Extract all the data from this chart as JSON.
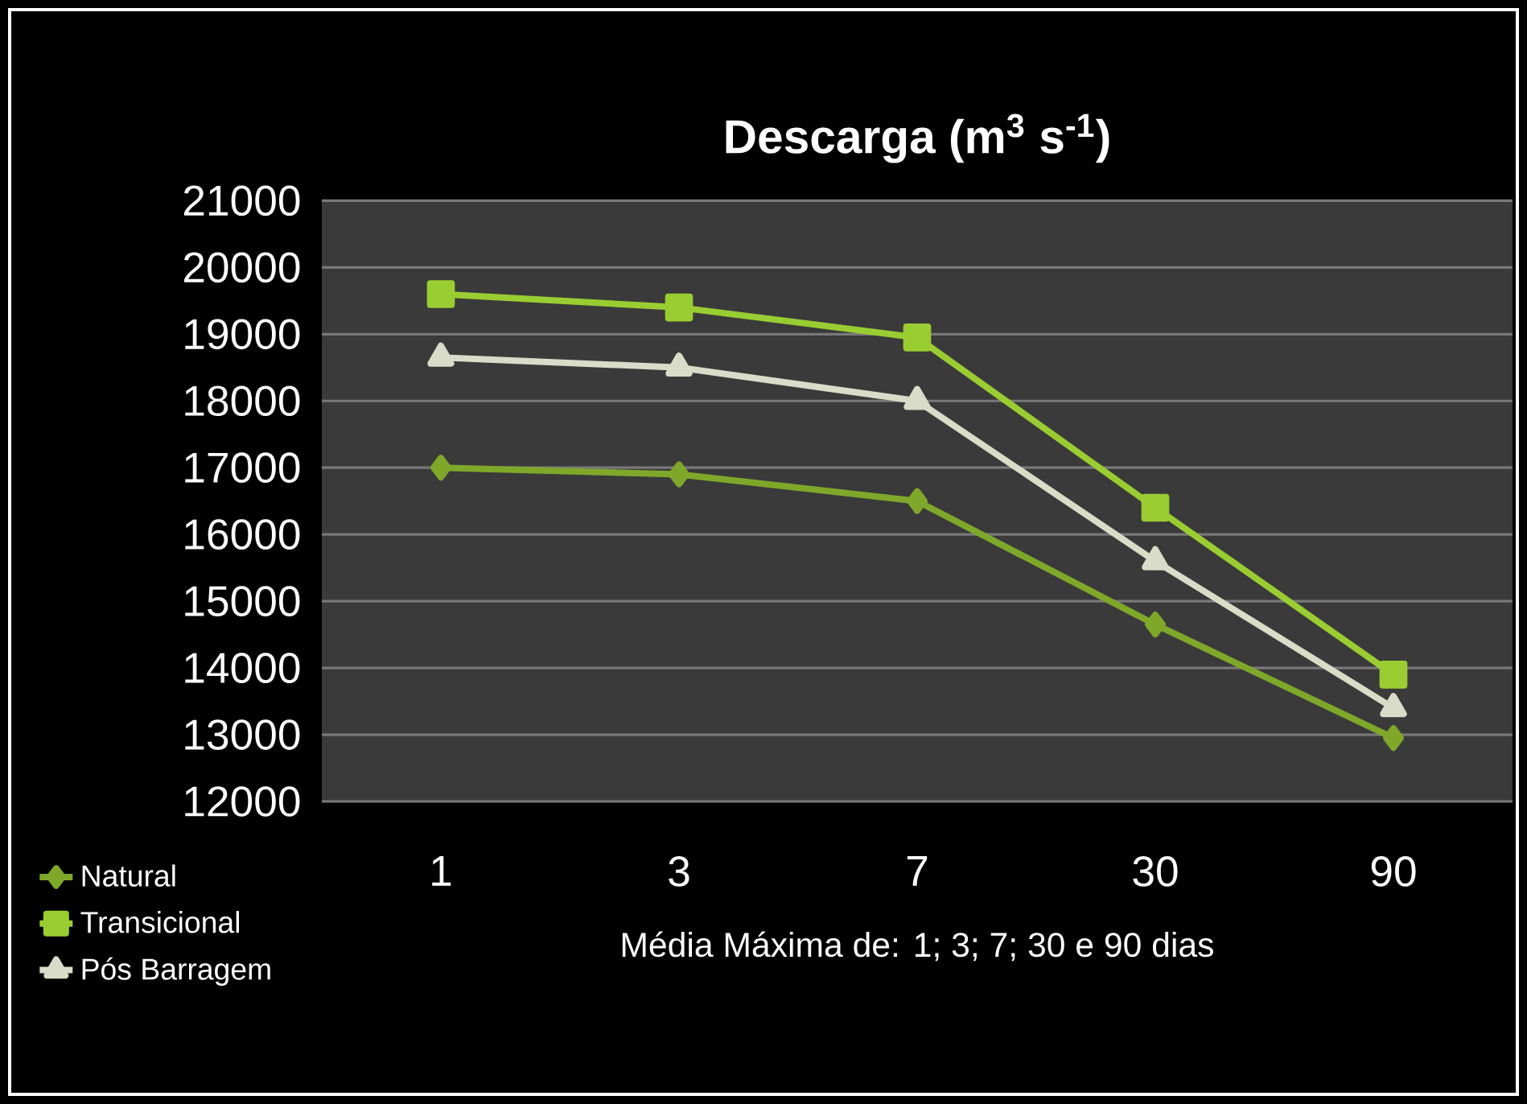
{
  "chart_data": {
    "type": "line",
    "title": "Descarga (m$^{3}$ s$^{-1}$)",
    "xlabel": "Média Máxima de: 1; 3; 7; 30 e 90 dias",
    "categories": [
      "1",
      "3",
      "7",
      "30",
      "90"
    ],
    "series": [
      {
        "name": "Natural",
        "color": "#7fa82a",
        "marker": "diamond",
        "values": [
          17000,
          16900,
          16500,
          14650,
          12950
        ]
      },
      {
        "name": "Transicional",
        "color": "#9acd32",
        "marker": "square",
        "values": [
          19600,
          19400,
          18950,
          16400,
          13900
        ]
      },
      {
        "name": "Pós Barragem",
        "color": "#d8dcc8",
        "marker": "triangle",
        "values": [
          18650,
          18500,
          18000,
          15600,
          13400
        ]
      }
    ],
    "ylim": [
      12000,
      21000
    ],
    "yticks": [
      12000,
      13000,
      14000,
      15000,
      16000,
      17000,
      18000,
      19000,
      20000,
      21000
    ],
    "grid": "y",
    "legend": "bottom left",
    "line_style": "solid"
  }
}
